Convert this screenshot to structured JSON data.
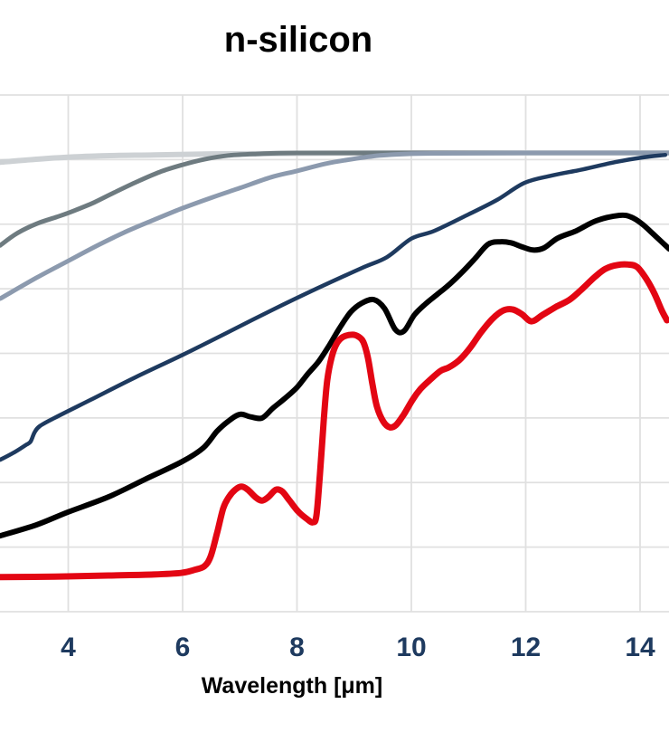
{
  "chart_data": {
    "type": "line",
    "title": "n-silicon",
    "xlabel": "Wavelength [μm]",
    "x_ticks": [
      "4",
      "6",
      "8",
      "10",
      "12",
      "14"
    ],
    "x_tick_values": [
      4,
      6,
      8,
      10,
      12,
      14
    ],
    "x_range": [
      2.81,
      14.51
    ],
    "y_axis_note": "y-axis is cropped out of the visible image (no labels); y values are normalized to visible plot height, 0 = bottom edge, 1 = top edge",
    "grid": true,
    "legend": "none visible",
    "colors": {
      "gridline": "#e0e0e0",
      "tick_label": "#1e3a5f",
      "title": "#000000",
      "axis_label": "#000000"
    },
    "series": [
      {
        "name": "light-gray",
        "color": "#cdd1d4",
        "points": [
          [
            2.81,
            0.87
          ],
          [
            3.6,
            0.877
          ],
          [
            4.5,
            0.882
          ],
          [
            5.5,
            0.884
          ],
          [
            6.5,
            0.886
          ],
          [
            8.0,
            0.887
          ],
          [
            10.0,
            0.888
          ],
          [
            12.0,
            0.888
          ],
          [
            14.5,
            0.888
          ]
        ]
      },
      {
        "name": "gray",
        "color": "#6e7b80",
        "points": [
          [
            2.81,
            0.709
          ],
          [
            3.1,
            0.732
          ],
          [
            3.45,
            0.751
          ],
          [
            3.8,
            0.764
          ],
          [
            4.1,
            0.776
          ],
          [
            4.45,
            0.792
          ],
          [
            4.8,
            0.811
          ],
          [
            5.2,
            0.832
          ],
          [
            5.6,
            0.851
          ],
          [
            6.0,
            0.865
          ],
          [
            6.4,
            0.876
          ],
          [
            6.8,
            0.883
          ],
          [
            7.3,
            0.886
          ],
          [
            8.0,
            0.888
          ],
          [
            10.0,
            0.888
          ],
          [
            12.0,
            0.888
          ],
          [
            14.5,
            0.888
          ]
        ]
      },
      {
        "name": "slate-gray",
        "color": "#8c9aae",
        "points": [
          [
            2.81,
            0.606
          ],
          [
            3.44,
            0.646
          ],
          [
            4.0,
            0.679
          ],
          [
            4.55,
            0.711
          ],
          [
            5.02,
            0.736
          ],
          [
            5.49,
            0.758
          ],
          [
            6.0,
            0.781
          ],
          [
            6.52,
            0.802
          ],
          [
            7.0,
            0.82
          ],
          [
            7.55,
            0.841
          ],
          [
            8.0,
            0.853
          ],
          [
            8.5,
            0.867
          ],
          [
            8.97,
            0.876
          ],
          [
            9.45,
            0.883
          ],
          [
            9.92,
            0.886
          ],
          [
            10.5,
            0.887
          ],
          [
            12.0,
            0.888
          ],
          [
            14.5,
            0.888
          ]
        ]
      },
      {
        "name": "navy",
        "color": "#1e3a5f",
        "points": [
          [
            2.81,
            0.294
          ],
          [
            3.05,
            0.308
          ],
          [
            3.25,
            0.322
          ],
          [
            3.34,
            0.329
          ],
          [
            3.41,
            0.347
          ],
          [
            3.5,
            0.359
          ],
          [
            3.76,
            0.375
          ],
          [
            4.39,
            0.41
          ],
          [
            5.18,
            0.454
          ],
          [
            6.0,
            0.497
          ],
          [
            6.76,
            0.539
          ],
          [
            7.55,
            0.583
          ],
          [
            8.34,
            0.625
          ],
          [
            9.13,
            0.665
          ],
          [
            9.57,
            0.686
          ],
          [
            10.0,
            0.722
          ],
          [
            10.4,
            0.737
          ],
          [
            11.0,
            0.769
          ],
          [
            11.5,
            0.797
          ],
          [
            11.98,
            0.83
          ],
          [
            12.45,
            0.844
          ],
          [
            13.0,
            0.856
          ],
          [
            13.56,
            0.87
          ],
          [
            14.03,
            0.879
          ],
          [
            14.44,
            0.884
          ]
        ]
      },
      {
        "name": "black",
        "color": "#000000",
        "points": [
          [
            2.81,
            0.147
          ],
          [
            3.44,
            0.168
          ],
          [
            4.0,
            0.193
          ],
          [
            4.7,
            0.222
          ],
          [
            5.34,
            0.256
          ],
          [
            6.0,
            0.291
          ],
          [
            6.36,
            0.317
          ],
          [
            6.6,
            0.349
          ],
          [
            6.79,
            0.368
          ],
          [
            7.0,
            0.382
          ],
          [
            7.19,
            0.377
          ],
          [
            7.39,
            0.375
          ],
          [
            7.58,
            0.394
          ],
          [
            7.79,
            0.413
          ],
          [
            8.0,
            0.434
          ],
          [
            8.18,
            0.459
          ],
          [
            8.37,
            0.483
          ],
          [
            8.55,
            0.513
          ],
          [
            8.74,
            0.548
          ],
          [
            8.94,
            0.58
          ],
          [
            9.13,
            0.597
          ],
          [
            9.34,
            0.604
          ],
          [
            9.53,
            0.587
          ],
          [
            9.72,
            0.546
          ],
          [
            9.87,
            0.543
          ],
          [
            10.05,
            0.574
          ],
          [
            10.24,
            0.595
          ],
          [
            10.44,
            0.613
          ],
          [
            10.63,
            0.63
          ],
          [
            10.87,
            0.655
          ],
          [
            11.11,
            0.683
          ],
          [
            11.34,
            0.711
          ],
          [
            11.55,
            0.716
          ],
          [
            11.74,
            0.714
          ],
          [
            11.94,
            0.706
          ],
          [
            12.13,
            0.7
          ],
          [
            12.32,
            0.704
          ],
          [
            12.56,
            0.723
          ],
          [
            12.88,
            0.737
          ],
          [
            13.24,
            0.757
          ],
          [
            13.64,
            0.767
          ],
          [
            13.84,
            0.764
          ],
          [
            14.03,
            0.751
          ],
          [
            14.22,
            0.732
          ],
          [
            14.51,
            0.702
          ]
        ]
      },
      {
        "name": "red",
        "color": "#e30613",
        "points": [
          [
            2.81,
            0.067
          ],
          [
            3.76,
            0.068
          ],
          [
            4.7,
            0.07
          ],
          [
            5.49,
            0.072
          ],
          [
            5.97,
            0.075
          ],
          [
            6.21,
            0.081
          ],
          [
            6.38,
            0.088
          ],
          [
            6.49,
            0.107
          ],
          [
            6.6,
            0.151
          ],
          [
            6.71,
            0.2
          ],
          [
            6.81,
            0.222
          ],
          [
            6.92,
            0.236
          ],
          [
            7.03,
            0.242
          ],
          [
            7.14,
            0.236
          ],
          [
            7.28,
            0.221
          ],
          [
            7.39,
            0.215
          ],
          [
            7.5,
            0.222
          ],
          [
            7.63,
            0.236
          ],
          [
            7.74,
            0.233
          ],
          [
            7.87,
            0.215
          ],
          [
            8.02,
            0.194
          ],
          [
            8.18,
            0.179
          ],
          [
            8.28,
            0.173
          ],
          [
            8.34,
            0.186
          ],
          [
            8.4,
            0.264
          ],
          [
            8.47,
            0.373
          ],
          [
            8.53,
            0.448
          ],
          [
            8.61,
            0.494
          ],
          [
            8.7,
            0.52
          ],
          [
            8.81,
            0.532
          ],
          [
            8.97,
            0.536
          ],
          [
            9.08,
            0.532
          ],
          [
            9.16,
            0.522
          ],
          [
            9.24,
            0.492
          ],
          [
            9.32,
            0.44
          ],
          [
            9.4,
            0.396
          ],
          [
            9.51,
            0.368
          ],
          [
            9.62,
            0.357
          ],
          [
            9.73,
            0.361
          ],
          [
            9.87,
            0.382
          ],
          [
            10.02,
            0.41
          ],
          [
            10.16,
            0.431
          ],
          [
            10.32,
            0.448
          ],
          [
            10.51,
            0.466
          ],
          [
            10.66,
            0.473
          ],
          [
            10.84,
            0.487
          ],
          [
            11.03,
            0.511
          ],
          [
            11.22,
            0.541
          ],
          [
            11.42,
            0.567
          ],
          [
            11.61,
            0.583
          ],
          [
            11.77,
            0.585
          ],
          [
            11.93,
            0.576
          ],
          [
            12.1,
            0.562
          ],
          [
            12.29,
            0.574
          ],
          [
            12.53,
            0.59
          ],
          [
            12.77,
            0.604
          ],
          [
            12.97,
            0.623
          ],
          [
            13.21,
            0.648
          ],
          [
            13.4,
            0.664
          ],
          [
            13.6,
            0.671
          ],
          [
            13.79,
            0.672
          ],
          [
            13.95,
            0.667
          ],
          [
            14.11,
            0.644
          ],
          [
            14.25,
            0.616
          ],
          [
            14.38,
            0.583
          ],
          [
            14.47,
            0.564
          ]
        ]
      }
    ]
  }
}
